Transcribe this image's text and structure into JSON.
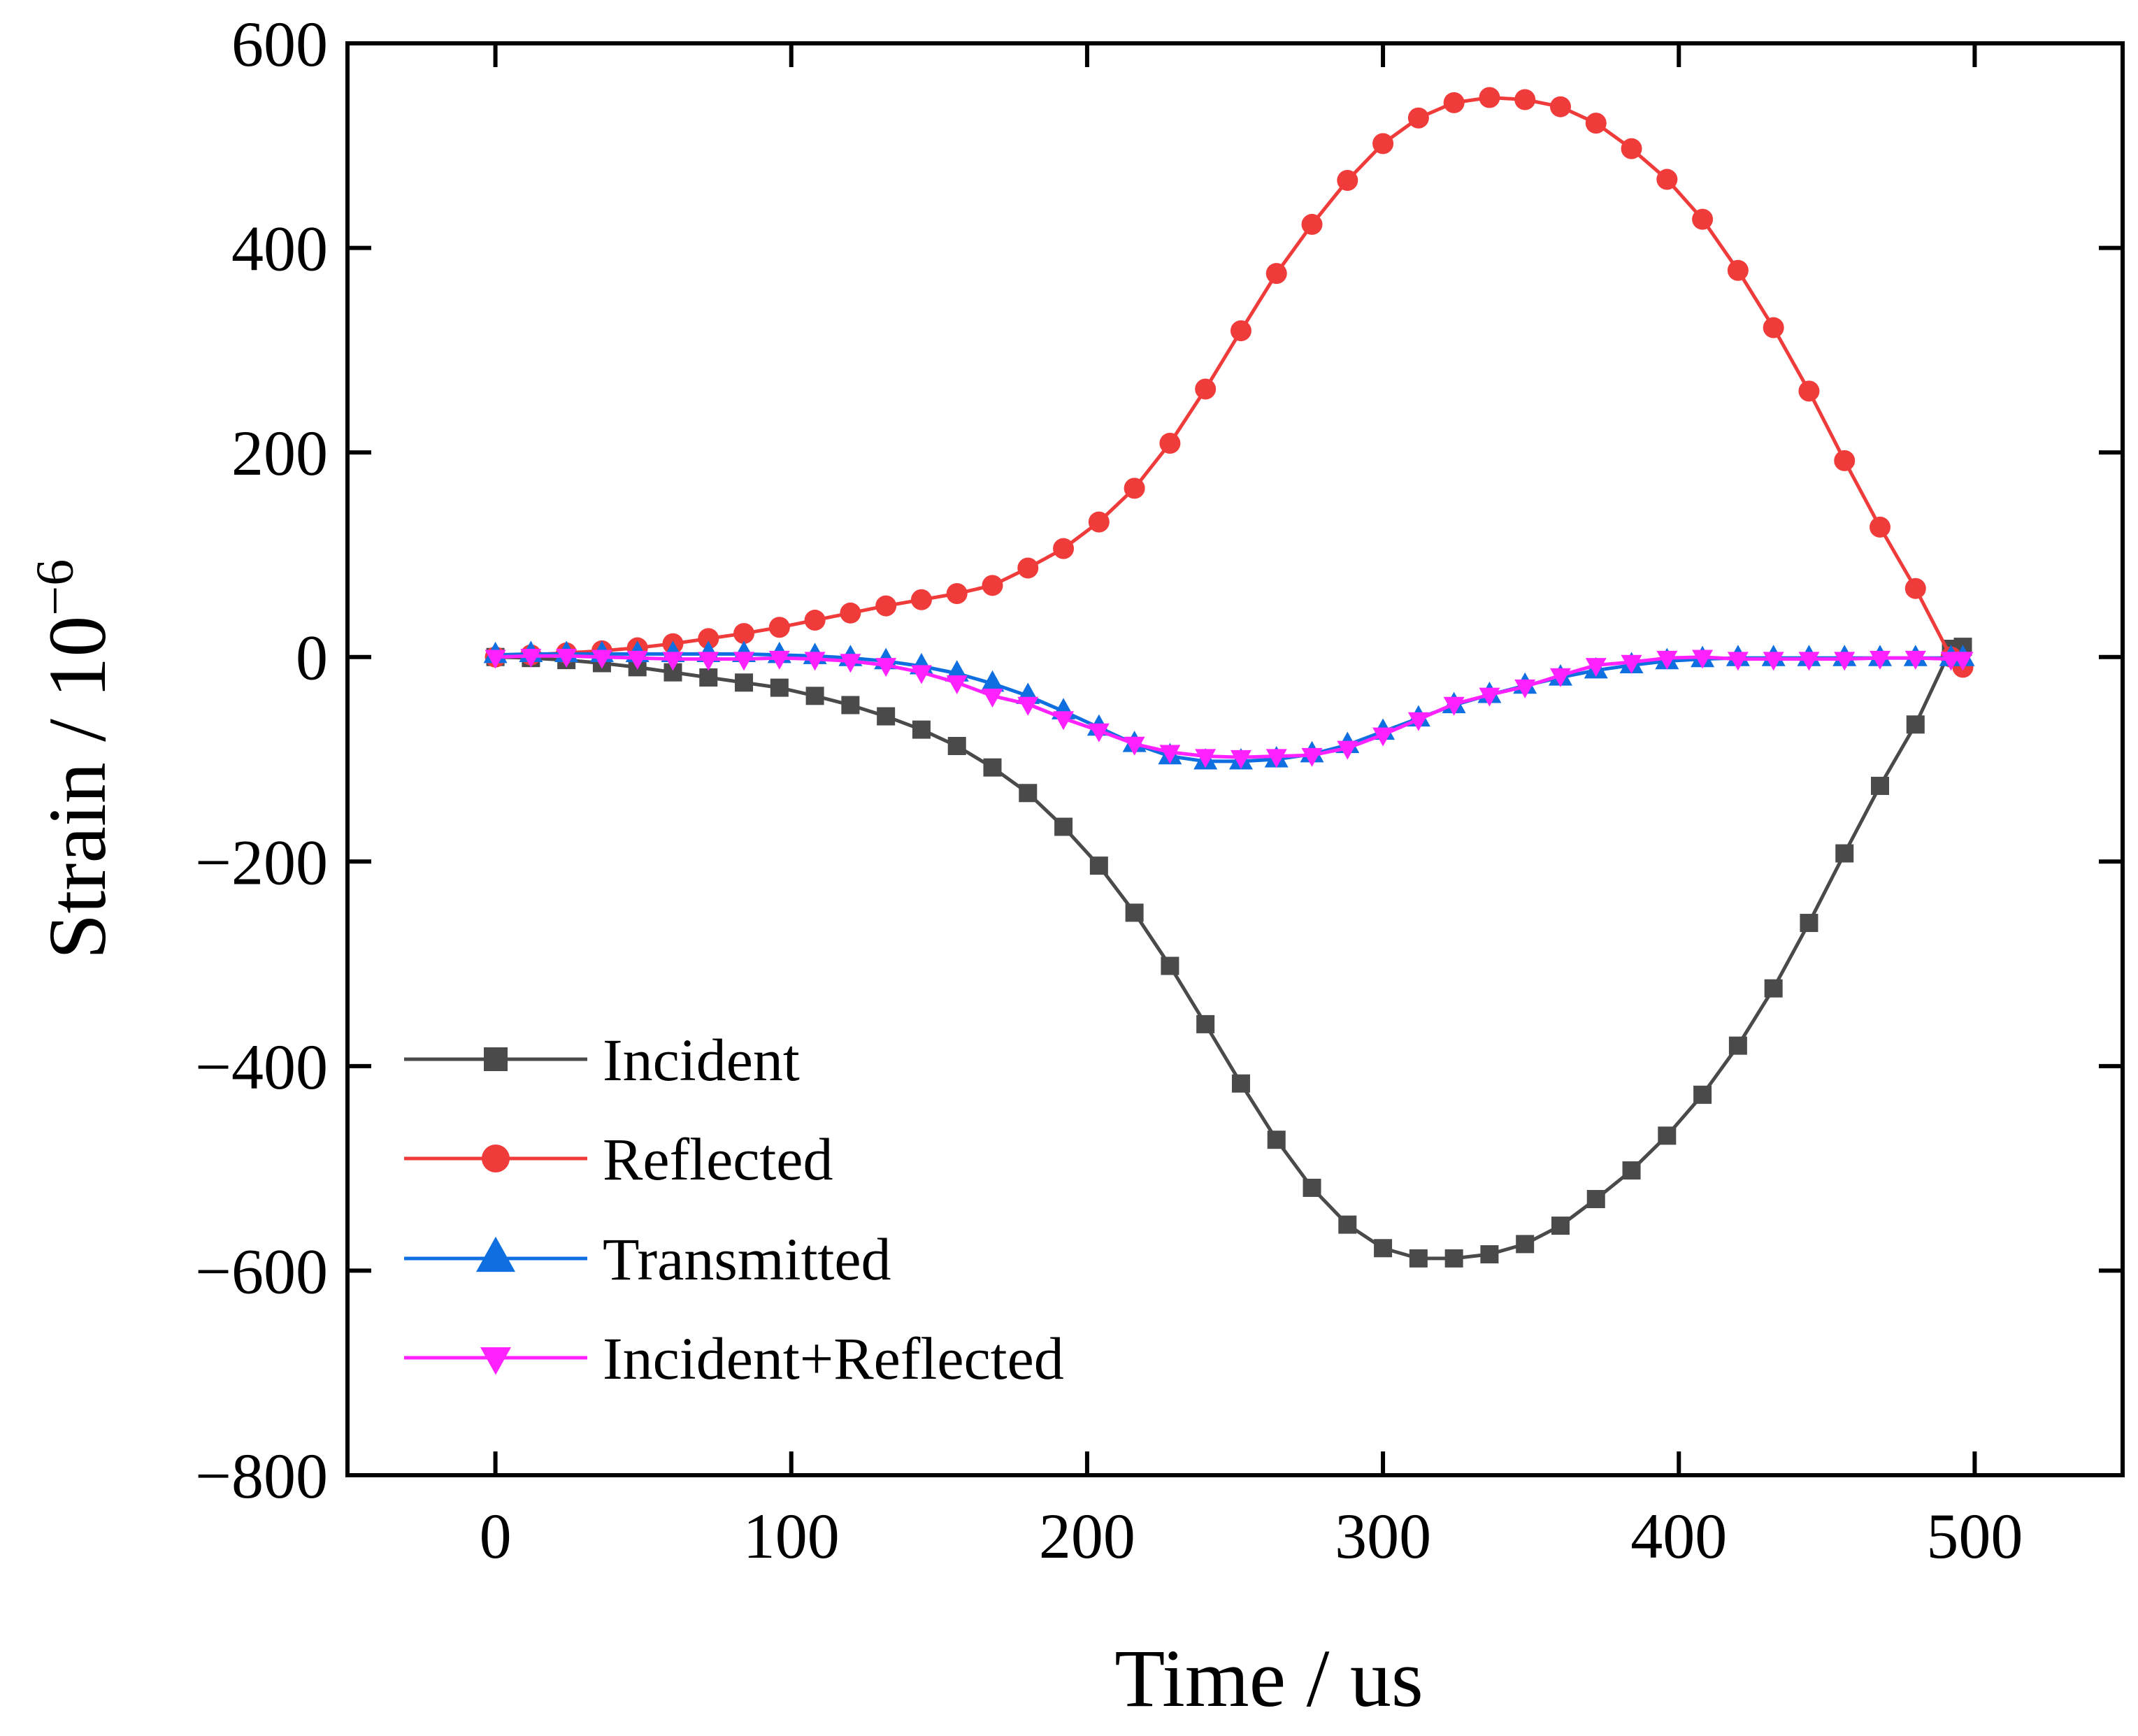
{
  "chart_data": {
    "type": "line",
    "title": "",
    "xlabel": "Time / us",
    "ylabel_base": "Strain / 10",
    "ylabel_exponent": "−6",
    "xlim": [
      -50,
      550
    ],
    "ylim": [
      -800,
      600
    ],
    "xticks": [
      0,
      100,
      200,
      300,
      400,
      500
    ],
    "yticks": [
      600,
      400,
      200,
      0,
      -200,
      -400,
      -600,
      -800
    ],
    "xtick_labels": [
      "0",
      "100",
      "200",
      "300",
      "400",
      "500"
    ],
    "ytick_labels": [
      "600",
      "400",
      "200",
      "0",
      "−200",
      "−400",
      "−600",
      "−800"
    ],
    "grid": false,
    "legend_position": "bottom-left",
    "x": [
      0,
      12,
      24,
      36,
      48,
      60,
      72,
      84,
      96,
      108,
      120,
      132,
      144,
      156,
      168,
      180,
      192,
      204,
      216,
      228,
      240,
      252,
      264,
      276,
      288,
      300,
      312,
      324,
      336,
      348,
      360,
      372,
      384,
      396,
      408,
      420,
      432,
      444,
      456,
      468,
      480,
      492,
      496
    ],
    "series": [
      {
        "name": "Incident",
        "color": "#4a4a4a",
        "marker": "square",
        "values": [
          0,
          -1,
          -3,
          -6,
          -10,
          -15,
          -20,
          -25,
          -30,
          -38,
          -47,
          -58,
          -71,
          -87,
          -108,
          -133,
          -166,
          -204,
          -250,
          -302,
          -359,
          -417,
          -472,
          -519,
          -555,
          -578,
          -588,
          -588,
          -584,
          -574,
          -556,
          -530,
          -502,
          -468,
          -428,
          -380,
          -324,
          -260,
          -192,
          -126,
          -66,
          8,
          10
        ]
      },
      {
        "name": "Reflected",
        "color": "#f03b3b",
        "marker": "circle",
        "values": [
          0,
          2,
          4,
          6,
          9,
          13,
          18,
          23,
          29,
          36,
          43,
          50,
          56,
          62,
          70,
          87,
          106,
          132,
          165,
          209,
          262,
          319,
          375,
          423,
          466,
          502,
          527,
          542,
          547,
          545,
          538,
          522,
          497,
          467,
          428,
          378,
          322,
          260,
          192,
          127,
          67,
          0,
          -10
        ]
      },
      {
        "name": "Transmitted",
        "color": "#0f6fe0",
        "marker": "triangle-up",
        "values": [
          2,
          3,
          3,
          3,
          3,
          3,
          3,
          3,
          2,
          1,
          -1,
          -4,
          -9,
          -16,
          -26,
          -38,
          -53,
          -69,
          -85,
          -97,
          -102,
          -102,
          -100,
          -95,
          -86,
          -73,
          -60,
          -47,
          -37,
          -28,
          -20,
          -13,
          -8,
          -4,
          -2,
          -1,
          -1,
          -1,
          -1,
          -1,
          -1,
          -1,
          -1
        ]
      },
      {
        "name": "Incident+Reflected",
        "color": "#ff22ff",
        "marker": "triangle-down",
        "values": [
          0,
          1,
          1,
          0,
          -1,
          -2,
          -2,
          -2,
          -1,
          -2,
          -4,
          -8,
          -15,
          -25,
          -38,
          -46,
          -60,
          -72,
          -85,
          -93,
          -97,
          -98,
          -97,
          -96,
          -89,
          -76,
          -61,
          -46,
          -37,
          -29,
          -18,
          -8,
          -5,
          -1,
          0,
          -2,
          -2,
          -2,
          -2,
          -1,
          -1,
          -2,
          -2
        ]
      }
    ]
  }
}
